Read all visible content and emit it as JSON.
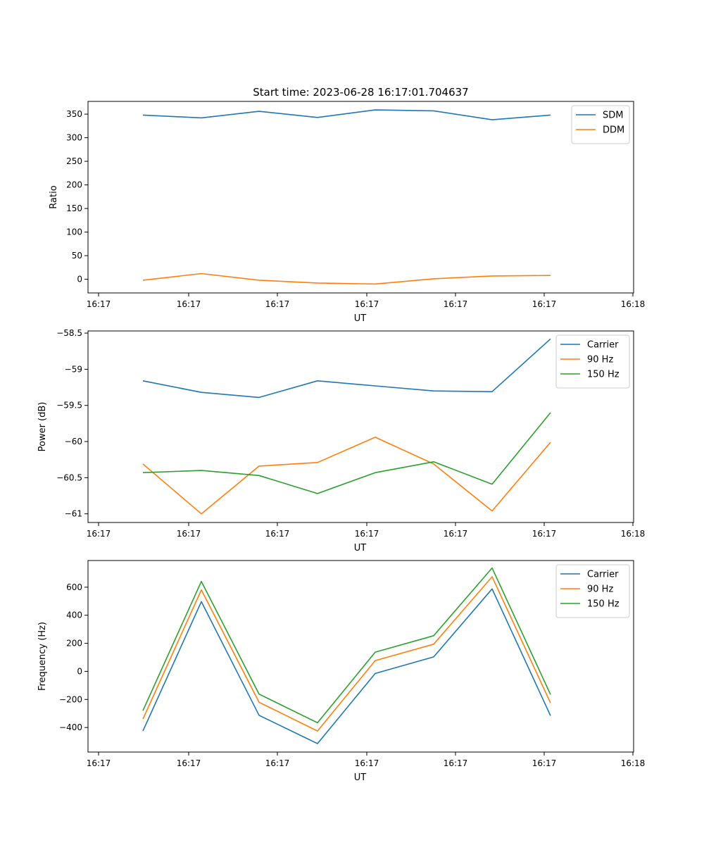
{
  "title": "Start time: 2023-06-28 16:17:01.704637",
  "chart_data": [
    {
      "type": "line",
      "title": "Start time: 2023-06-28 16:17:01.704637",
      "xlabel": "UT",
      "ylabel": "Ratio",
      "x_ticks": [
        "16:17",
        "16:17",
        "16:17",
        "16:17",
        "16:17",
        "16:17",
        "16:18"
      ],
      "y_ticks": [
        0,
        50,
        100,
        150,
        200,
        250,
        300,
        350
      ],
      "ylim": [
        -29,
        377
      ],
      "legend": "top-right",
      "series": [
        {
          "name": "SDM",
          "color": "#1f77b4",
          "values": [
            348,
            342,
            356,
            343,
            359,
            357,
            338,
            348
          ]
        },
        {
          "name": "DDM",
          "color": "#ff7f0e",
          "values": [
            -2,
            12,
            -2,
            -8,
            -10,
            1,
            7,
            8
          ]
        }
      ]
    },
    {
      "type": "line",
      "xlabel": "UT",
      "ylabel": "Power (dB)",
      "x_ticks": [
        "16:17",
        "16:17",
        "16:17",
        "16:17",
        "16:17",
        "16:17",
        "16:18"
      ],
      "y_ticks": [
        -58.5,
        -59.0,
        -59.5,
        -60.0,
        -60.5,
        -61.0
      ],
      "ylim": [
        -61.12,
        -58.47
      ],
      "legend": "top-right",
      "series": [
        {
          "name": "Carrier",
          "color": "#1f77b4",
          "values": [
            -59.16,
            -59.32,
            -59.39,
            -59.16,
            -59.23,
            -59.3,
            -59.31,
            -58.58
          ]
        },
        {
          "name": "90 Hz",
          "color": "#ff7f0e",
          "values": [
            -60.31,
            -61.0,
            -60.34,
            -60.29,
            -59.94,
            -60.31,
            -60.96,
            -60.01
          ]
        },
        {
          "name": "150 Hz",
          "color": "#2ca02c",
          "values": [
            -60.43,
            -60.4,
            -60.47,
            -60.72,
            -60.43,
            -60.28,
            -60.59,
            -59.6
          ]
        }
      ]
    },
    {
      "type": "line",
      "xlabel": "UT",
      "ylabel": "Frequency (Hz)",
      "x_ticks": [
        "16:17",
        "16:17",
        "16:17",
        "16:17",
        "16:17",
        "16:17",
        "16:18"
      ],
      "y_ticks": [
        -400,
        -200,
        0,
        200,
        400,
        600
      ],
      "ylim": [
        -575,
        790
      ],
      "legend": "top-right",
      "series": [
        {
          "name": "Carrier",
          "color": "#1f77b4",
          "values": [
            -425,
            497,
            -313,
            -515,
            -15,
            103,
            588,
            -316
          ]
        },
        {
          "name": "90 Hz",
          "color": "#ff7f0e",
          "values": [
            -340,
            580,
            -220,
            -425,
            77,
            194,
            674,
            -225
          ]
        },
        {
          "name": "150 Hz",
          "color": "#2ca02c",
          "values": [
            -280,
            641,
            -162,
            -366,
            137,
            254,
            737,
            -165
          ]
        }
      ]
    }
  ]
}
